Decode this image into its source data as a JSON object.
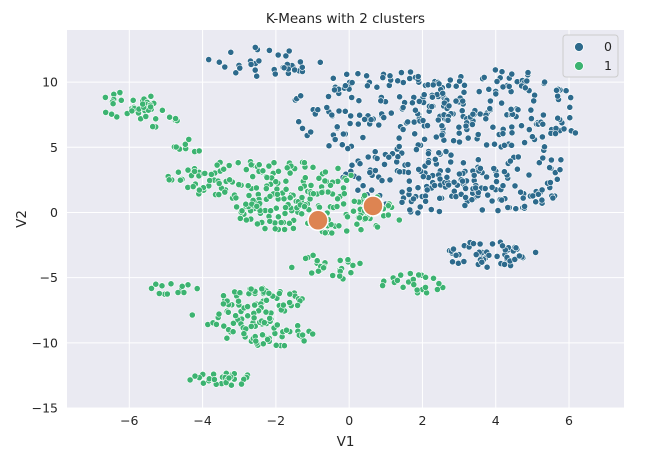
{
  "chart_data": {
    "type": "scatter",
    "title": "K-Means with 2 clusters",
    "xlabel": "V1",
    "ylabel": "V2",
    "xlim": [
      -7.7,
      7.5
    ],
    "ylim": [
      -15,
      14
    ],
    "xticks": [
      -6,
      -4,
      -2,
      0,
      2,
      4,
      6
    ],
    "yticks": [
      -15,
      -10,
      -5,
      0,
      5,
      10
    ],
    "grid": true,
    "legend_position": "top-right",
    "legend": [
      {
        "label": "0",
        "color": "#2d6a8c"
      },
      {
        "label": "1",
        "color": "#3cb371"
      }
    ],
    "centroid_color": "#dd8452",
    "centroids": [
      {
        "x": -0.85,
        "y": -0.6
      },
      {
        "x": 0.65,
        "y": 0.5
      }
    ],
    "series": [
      {
        "name": "0",
        "color": "#2d6a8c",
        "regions": [
          {
            "cx": -2.3,
            "cy": 11.6,
            "rx": 1.6,
            "ry": 1.2,
            "n": 35
          },
          {
            "cx": 1.0,
            "cy": 7.6,
            "rx": 2.6,
            "ry": 3.3,
            "n": 140
          },
          {
            "cx": 4.0,
            "cy": 8.0,
            "rx": 2.2,
            "ry": 3.0,
            "n": 130
          },
          {
            "cx": 1.8,
            "cy": 2.4,
            "rx": 2.0,
            "ry": 2.6,
            "n": 110
          },
          {
            "cx": 4.2,
            "cy": 2.2,
            "rx": 1.6,
            "ry": 2.2,
            "n": 80
          },
          {
            "cx": 3.8,
            "cy": -3.2,
            "rx": 1.3,
            "ry": 1.0,
            "n": 55
          },
          {
            "cx": 5.8,
            "cy": 5.0,
            "rx": 0.6,
            "ry": 2.0,
            "n": 10
          }
        ]
      },
      {
        "name": "1",
        "color": "#3cb371",
        "regions": [
          {
            "cx": -6.0,
            "cy": 8.2,
            "rx": 1.0,
            "ry": 1.2,
            "n": 30
          },
          {
            "cx": -5.2,
            "cy": 7.5,
            "rx": 0.6,
            "ry": 1.2,
            "n": 14
          },
          {
            "cx": -2.4,
            "cy": 2.5,
            "rx": 2.6,
            "ry": 1.5,
            "n": 120
          },
          {
            "cx": -0.8,
            "cy": 0.0,
            "rx": 2.4,
            "ry": 1.6,
            "n": 130
          },
          {
            "cx": -4.5,
            "cy": 5.0,
            "rx": 0.5,
            "ry": 0.8,
            "n": 8
          },
          {
            "cx": -4.8,
            "cy": -5.8,
            "rx": 0.7,
            "ry": 0.5,
            "n": 14
          },
          {
            "cx": -2.4,
            "cy": -6.8,
            "rx": 1.2,
            "ry": 1.0,
            "n": 55
          },
          {
            "cx": -3.3,
            "cy": -8.2,
            "rx": 1.2,
            "ry": 0.7,
            "n": 28
          },
          {
            "cx": -2.2,
            "cy": -9.4,
            "rx": 1.3,
            "ry": 1.0,
            "n": 40
          },
          {
            "cx": -0.6,
            "cy": -4.2,
            "rx": 1.0,
            "ry": 1.0,
            "n": 25
          },
          {
            "cx": 1.8,
            "cy": -5.5,
            "rx": 0.9,
            "ry": 0.9,
            "n": 24
          },
          {
            "cx": -3.5,
            "cy": -12.8,
            "rx": 1.0,
            "ry": 0.5,
            "n": 30
          }
        ]
      }
    ]
  }
}
